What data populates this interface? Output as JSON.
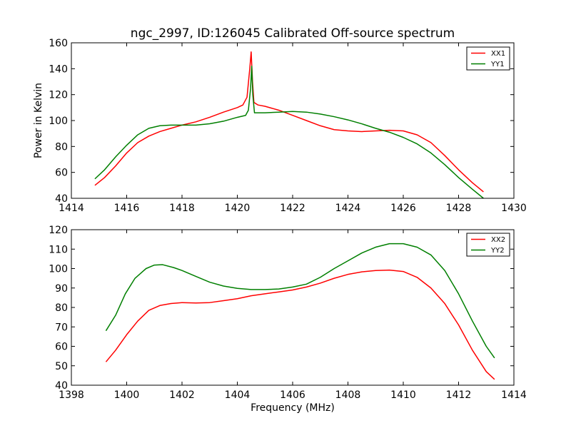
{
  "chart_data": [
    {
      "type": "line",
      "title": "ngc_2997, ID:126045 Calibrated Off-source spectrum",
      "xlabel": "",
      "ylabel": "Power in Kelvin",
      "xlim": [
        1414,
        1430
      ],
      "ylim": [
        40,
        160
      ],
      "xticks": [
        "1414",
        "1416",
        "1418",
        "1420",
        "1422",
        "1424",
        "1426",
        "1428",
        "1430"
      ],
      "yticks": [
        "40",
        "60",
        "80",
        "100",
        "120",
        "140",
        "160"
      ],
      "legend": "top-right",
      "grid": false,
      "series": [
        {
          "name": "XX1",
          "color": "#ff0000",
          "points": [
            [
              1414.85,
              50
            ],
            [
              1415.2,
              56
            ],
            [
              1415.6,
              65
            ],
            [
              1416.0,
              75
            ],
            [
              1416.4,
              83
            ],
            [
              1416.8,
              88
            ],
            [
              1417.2,
              91.5
            ],
            [
              1417.6,
              94
            ],
            [
              1418.0,
              96.5
            ],
            [
              1418.5,
              99
            ],
            [
              1419.0,
              102.5
            ],
            [
              1419.5,
              106.5
            ],
            [
              1420.0,
              110
            ],
            [
              1420.2,
              112
            ],
            [
              1420.35,
              118
            ],
            [
              1420.45,
              140
            ],
            [
              1420.5,
              153
            ],
            [
              1420.55,
              130
            ],
            [
              1420.6,
              114
            ],
            [
              1420.75,
              112
            ],
            [
              1421.0,
              111
            ],
            [
              1421.5,
              108
            ],
            [
              1422.0,
              104
            ],
            [
              1422.5,
              100
            ],
            [
              1423.0,
              96
            ],
            [
              1423.5,
              93
            ],
            [
              1424.0,
              92
            ],
            [
              1424.5,
              91.5
            ],
            [
              1425.0,
              92
            ],
            [
              1425.5,
              92.5
            ],
            [
              1426.0,
              92
            ],
            [
              1426.5,
              89
            ],
            [
              1427.0,
              83
            ],
            [
              1427.5,
              73
            ],
            [
              1428.0,
              62
            ],
            [
              1428.5,
              52
            ],
            [
              1428.9,
              45
            ]
          ]
        },
        {
          "name": "YY1",
          "color": "#007f00",
          "points": [
            [
              1414.85,
              55
            ],
            [
              1415.2,
              62
            ],
            [
              1415.6,
              72
            ],
            [
              1416.0,
              81
            ],
            [
              1416.4,
              89
            ],
            [
              1416.8,
              94
            ],
            [
              1417.2,
              96
            ],
            [
              1417.6,
              96.5
            ],
            [
              1418.0,
              96.5
            ],
            [
              1418.5,
              96.5
            ],
            [
              1419.0,
              97.5
            ],
            [
              1419.5,
              99.5
            ],
            [
              1420.0,
              102.5
            ],
            [
              1420.3,
              104
            ],
            [
              1420.4,
              108
            ],
            [
              1420.48,
              125
            ],
            [
              1420.52,
              142
            ],
            [
              1420.56,
              120
            ],
            [
              1420.62,
              106
            ],
            [
              1421.0,
              106
            ],
            [
              1421.5,
              106.5
            ],
            [
              1422.0,
              107
            ],
            [
              1422.5,
              106.5
            ],
            [
              1423.0,
              105
            ],
            [
              1423.5,
              103
            ],
            [
              1424.0,
              100.5
            ],
            [
              1424.5,
              97.5
            ],
            [
              1425.0,
              94
            ],
            [
              1425.5,
              91
            ],
            [
              1426.0,
              87
            ],
            [
              1426.5,
              82
            ],
            [
              1427.0,
              75
            ],
            [
              1427.5,
              66
            ],
            [
              1428.0,
              56
            ],
            [
              1428.5,
              47
            ],
            [
              1428.9,
              40
            ]
          ]
        }
      ]
    },
    {
      "type": "line",
      "title": "",
      "xlabel": "Frequency (MHz)",
      "ylabel": "",
      "xlim": [
        1398,
        1414
      ],
      "ylim": [
        40,
        120
      ],
      "xticks": [
        "1398",
        "1400",
        "1402",
        "1404",
        "1406",
        "1408",
        "1410",
        "1412",
        "1414"
      ],
      "yticks": [
        "40",
        "50",
        "60",
        "70",
        "80",
        "90",
        "100",
        "110",
        "120"
      ],
      "legend": "top-right",
      "grid": false,
      "series": [
        {
          "name": "XX2",
          "color": "#ff0000",
          "points": [
            [
              1399.25,
              52
            ],
            [
              1399.6,
              58
            ],
            [
              1400.0,
              66
            ],
            [
              1400.4,
              73
            ],
            [
              1400.8,
              78.5
            ],
            [
              1401.2,
              81
            ],
            [
              1401.6,
              82
            ],
            [
              1402.0,
              82.5
            ],
            [
              1402.5,
              82.3
            ],
            [
              1403.0,
              82.5
            ],
            [
              1403.5,
              83.5
            ],
            [
              1404.0,
              84.5
            ],
            [
              1404.5,
              86
            ],
            [
              1405.0,
              87
            ],
            [
              1405.5,
              88
            ],
            [
              1406.0,
              89
            ],
            [
              1406.5,
              90.5
            ],
            [
              1407.0,
              92.5
            ],
            [
              1407.5,
              95
            ],
            [
              1408.0,
              97
            ],
            [
              1408.5,
              98.3
            ],
            [
              1409.0,
              99
            ],
            [
              1409.5,
              99.2
            ],
            [
              1410.0,
              98.5
            ],
            [
              1410.5,
              95.5
            ],
            [
              1411.0,
              90
            ],
            [
              1411.5,
              82
            ],
            [
              1412.0,
              71
            ],
            [
              1412.5,
              58
            ],
            [
              1413.0,
              47
            ],
            [
              1413.3,
              43
            ]
          ]
        },
        {
          "name": "YY2",
          "color": "#007f00",
          "points": [
            [
              1399.25,
              68
            ],
            [
              1399.6,
              76
            ],
            [
              1399.95,
              87
            ],
            [
              1400.3,
              95
            ],
            [
              1400.7,
              100
            ],
            [
              1401.0,
              101.8
            ],
            [
              1401.3,
              102
            ],
            [
              1401.7,
              100.5
            ],
            [
              1402.0,
              99
            ],
            [
              1402.5,
              96
            ],
            [
              1403.0,
              93
            ],
            [
              1403.5,
              91
            ],
            [
              1404.0,
              89.8
            ],
            [
              1404.5,
              89.2
            ],
            [
              1405.0,
              89.2
            ],
            [
              1405.5,
              89.5
            ],
            [
              1406.0,
              90.5
            ],
            [
              1406.5,
              92
            ],
            [
              1407.0,
              95.5
            ],
            [
              1407.5,
              100
            ],
            [
              1408.0,
              104
            ],
            [
              1408.5,
              108
            ],
            [
              1409.0,
              111
            ],
            [
              1409.5,
              112.8
            ],
            [
              1410.0,
              112.8
            ],
            [
              1410.5,
              111
            ],
            [
              1411.0,
              107
            ],
            [
              1411.5,
              99
            ],
            [
              1412.0,
              87
            ],
            [
              1412.5,
              73
            ],
            [
              1413.0,
              60
            ],
            [
              1413.3,
              54
            ]
          ]
        }
      ]
    }
  ]
}
